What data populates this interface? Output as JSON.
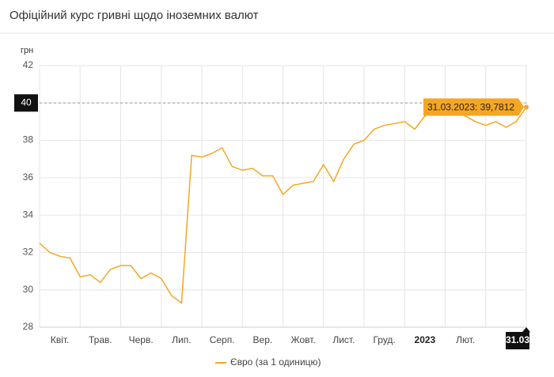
{
  "chart_data": {
    "type": "line",
    "title": "Офіційний курс гривні щодо іноземних валют",
    "y_axis_label": "грн",
    "categories": [
      null,
      null,
      "Квіт.",
      null,
      null,
      null,
      "Трав.",
      null,
      null,
      null,
      "Черв.",
      null,
      null,
      null,
      "Лип.",
      null,
      null,
      null,
      "Серп.",
      null,
      null,
      null,
      "Вер.",
      null,
      null,
      null,
      "Жовт.",
      null,
      null,
      null,
      "Лист.",
      null,
      null,
      null,
      "Груд.",
      null,
      null,
      null,
      "2023",
      null,
      null,
      null,
      "Лют.",
      null,
      null,
      null,
      null,
      null,
      "31.03"
    ],
    "series": [
      {
        "name": "Євро (за 1 одиницю)",
        "color": "#f5a623",
        "values": [
          32.5,
          32.0,
          31.8,
          31.7,
          30.7,
          30.8,
          30.4,
          31.1,
          31.3,
          31.3,
          30.6,
          30.9,
          30.6,
          29.7,
          29.3,
          37.2,
          37.1,
          37.3,
          37.6,
          36.6,
          36.4,
          36.5,
          36.1,
          36.1,
          35.1,
          35.6,
          35.7,
          35.8,
          36.7,
          35.8,
          37.0,
          37.8,
          38.0,
          38.6,
          38.8,
          38.9,
          39.0,
          38.6,
          39.3,
          39.7,
          39.6,
          39.5,
          39.3,
          39.0,
          38.8,
          39.0,
          38.7,
          39.0,
          39.7812
        ],
        "value_labels": [
          null,
          null,
          null,
          null,
          null,
          null,
          null,
          null,
          null,
          null,
          null,
          null,
          null,
          null,
          null,
          null,
          null,
          null,
          null,
          null,
          null,
          null,
          null,
          null,
          null,
          null,
          null,
          null,
          null,
          null,
          null,
          null,
          null,
          null,
          null,
          null,
          null,
          null,
          null,
          null,
          null,
          null,
          null,
          null,
          null,
          null,
          null,
          null,
          "31.03.2023: 39,7812"
        ]
      }
    ],
    "ylim": [
      28,
      42
    ],
    "yticks": [
      28,
      30,
      32,
      34,
      36,
      38,
      40,
      42
    ],
    "grid": true
  }
}
